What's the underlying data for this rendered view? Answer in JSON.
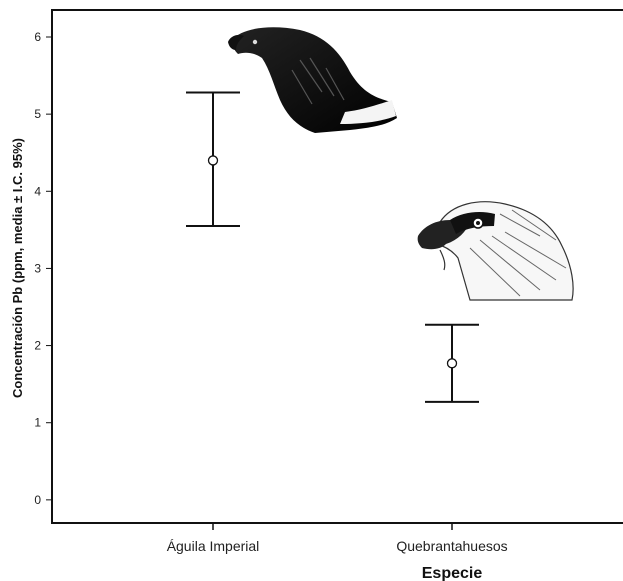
{
  "chart_data": {
    "type": "errorbar",
    "title": "",
    "xlabel": "Especie",
    "ylabel": "Concentración Pb (ppm, media ± I.C. 95%)",
    "categories": [
      "Águila Imperial",
      "Quebrantahuesos"
    ],
    "series": [
      {
        "mean": [
          4.4,
          1.77
        ],
        "lower": [
          3.55,
          1.27
        ],
        "upper": [
          5.28,
          2.27
        ]
      }
    ],
    "ylim": [
      -0.3,
      6.35
    ],
    "yticks": [
      "0",
      "1",
      "2",
      "3",
      "4",
      "5",
      "6"
    ],
    "grid": false,
    "legend": "none",
    "images": [
      "eagle-illustration",
      "bearded-vulture-illustration"
    ],
    "colors": {
      "ink": "#111111",
      "background": "#ffffff"
    }
  }
}
